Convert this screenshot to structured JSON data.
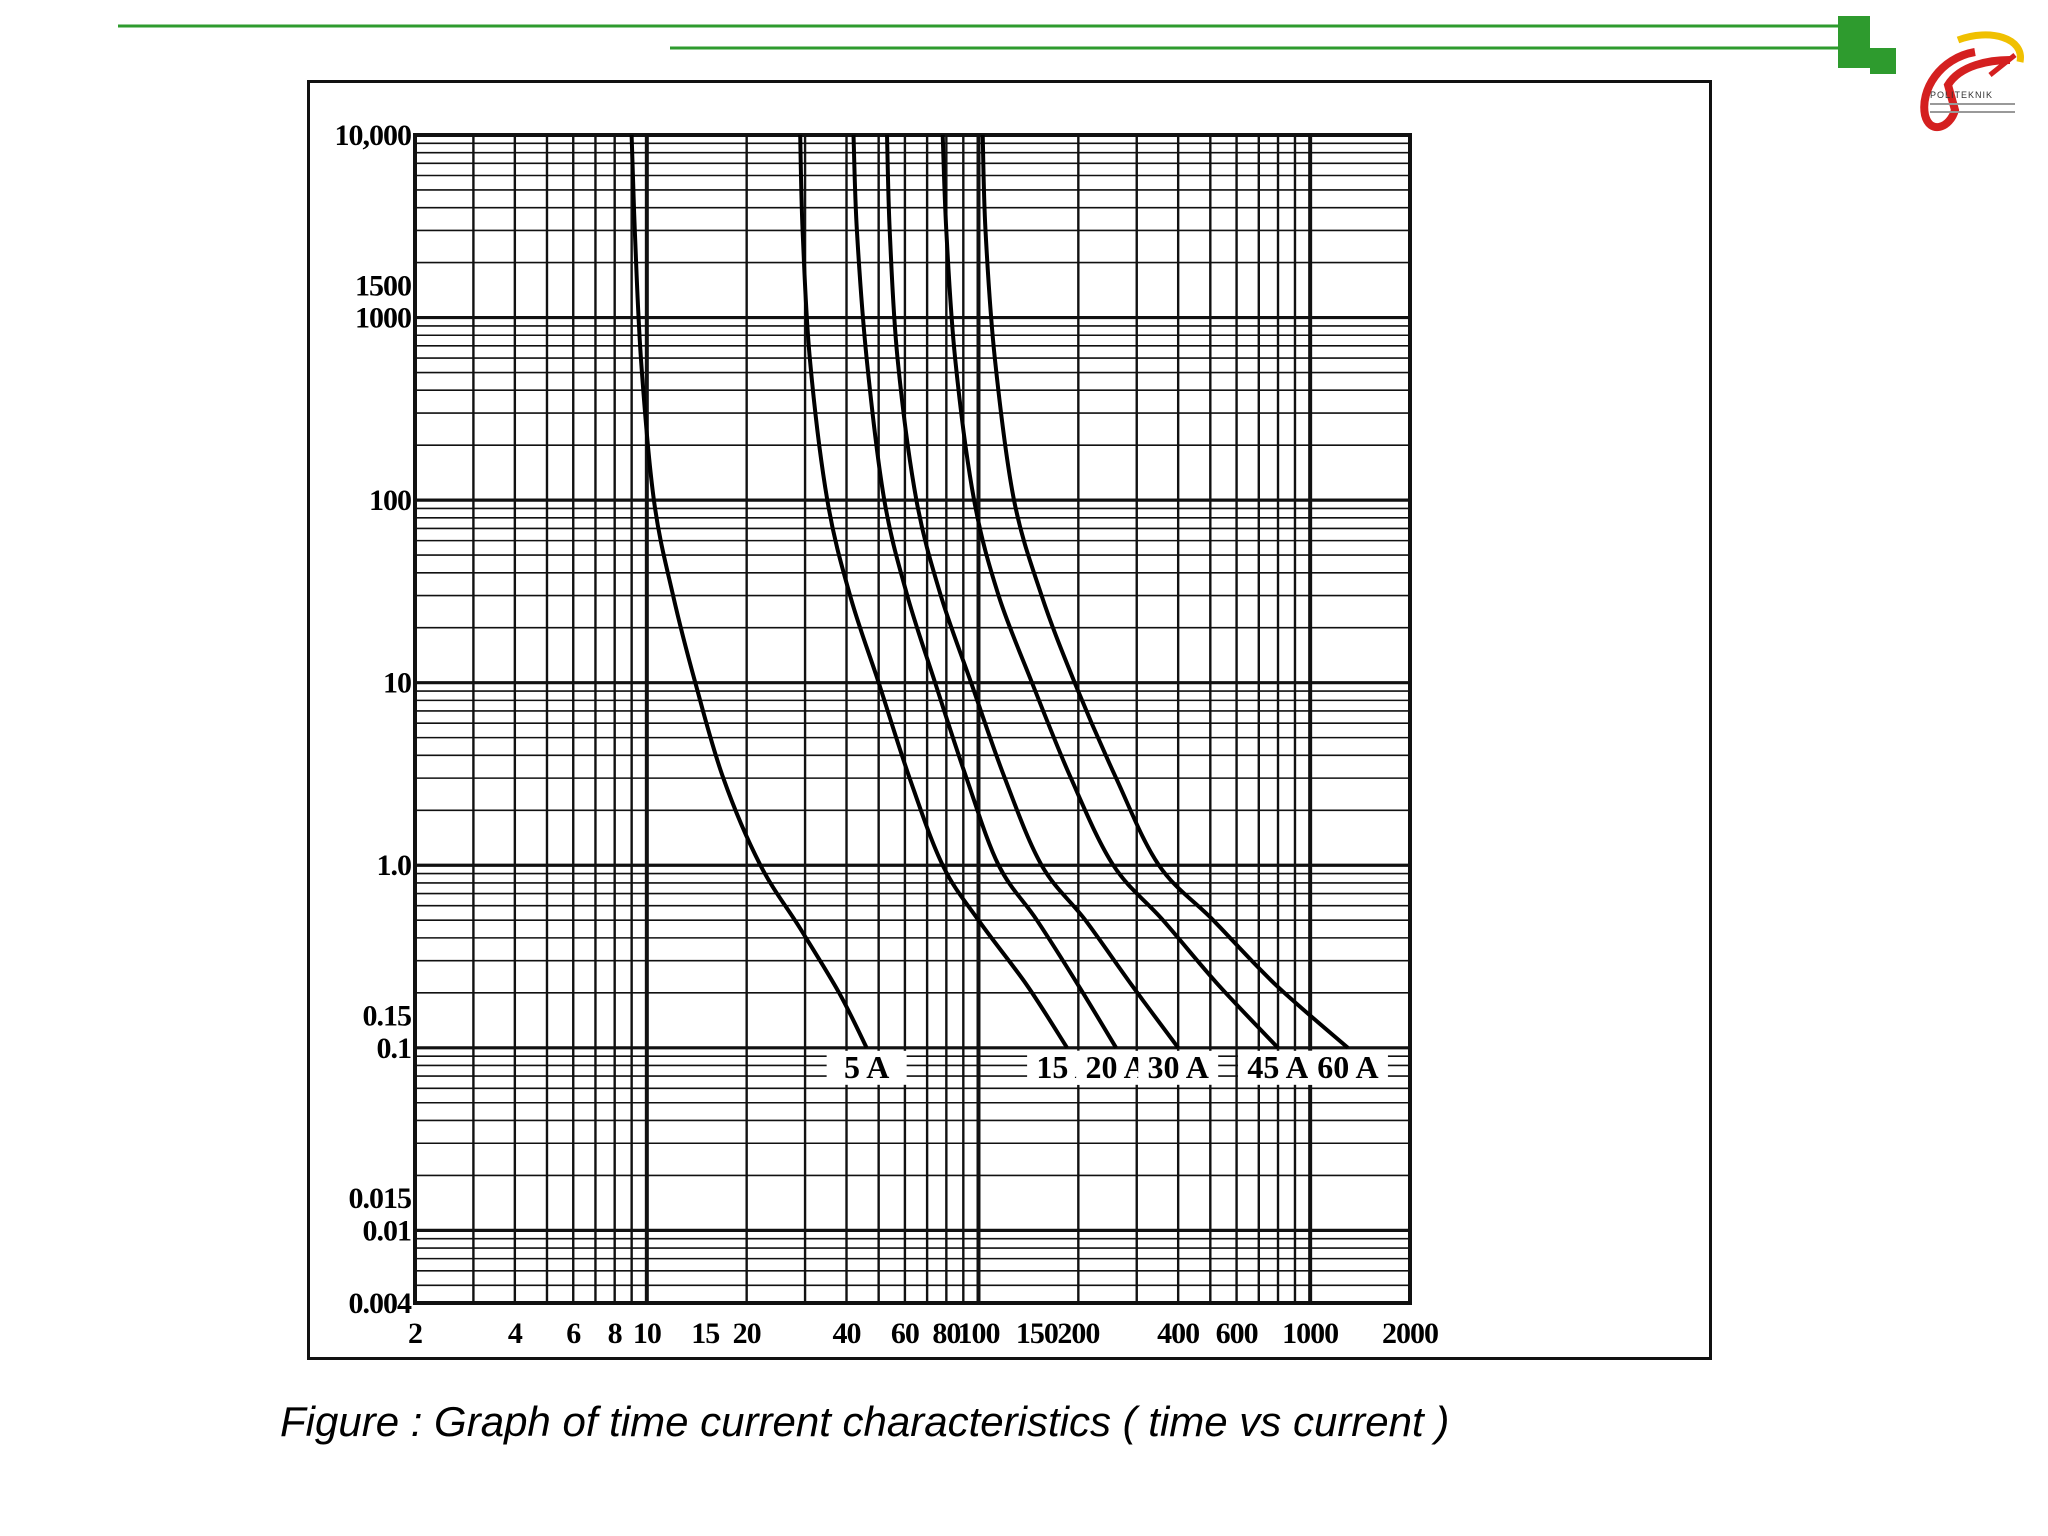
{
  "theme": {
    "accent_green": "#2e9b2e",
    "logo_red": "#d42020",
    "logo_yellow": "#f0c000",
    "grid_color": "#111111",
    "curve_color": "#000000"
  },
  "logo": {
    "name": "POLITEKNIK"
  },
  "caption": "Figure : Graph of time current characteristics ( time vs current )",
  "chart_data": {
    "type": "line",
    "x_scale": "log",
    "y_scale": "log",
    "xlim": [
      2,
      2000
    ],
    "ylim": [
      0.004,
      10000
    ],
    "grid": true,
    "legend": "none",
    "x_ticks": [
      {
        "value": 2,
        "label": "2"
      },
      {
        "value": 4,
        "label": "4"
      },
      {
        "value": 6,
        "label": "6"
      },
      {
        "value": 8,
        "label": "8"
      },
      {
        "value": 10,
        "label": "10"
      },
      {
        "value": 15,
        "label": "15"
      },
      {
        "value": 20,
        "label": "20"
      },
      {
        "value": 40,
        "label": "40"
      },
      {
        "value": 60,
        "label": "60"
      },
      {
        "value": 80,
        "label": "80"
      },
      {
        "value": 100,
        "label": "100"
      },
      {
        "value": 150,
        "label": "150"
      },
      {
        "value": 200,
        "label": "200"
      },
      {
        "value": 400,
        "label": "400"
      },
      {
        "value": 600,
        "label": "600"
      },
      {
        "value": 1000,
        "label": "1000"
      },
      {
        "value": 2000,
        "label": "2000"
      }
    ],
    "y_ticks": [
      {
        "value": 10000,
        "label": "10,000"
      },
      {
        "value": 1500,
        "label": "1500"
      },
      {
        "value": 1000,
        "label": "1000"
      },
      {
        "value": 100,
        "label": "100"
      },
      {
        "value": 10,
        "label": "10"
      },
      {
        "value": 1,
        "label": "1.0"
      },
      {
        "value": 0.15,
        "label": "0.15"
      },
      {
        "value": 0.1,
        "label": "0.1"
      },
      {
        "value": 0.015,
        "label": "0.015"
      },
      {
        "value": 0.01,
        "label": "0.01"
      },
      {
        "value": 0.004,
        "label": "0.004"
      }
    ],
    "series": [
      {
        "name": "5 A",
        "label_x": 46,
        "x": [
          9.0,
          9.2,
          9.6,
          10.5,
          12,
          14,
          17,
          22,
          29,
          38,
          46
        ],
        "y": [
          10000,
          3000,
          600,
          100,
          30,
          10,
          3,
          1.0,
          0.45,
          0.2,
          0.1
        ]
      },
      {
        "name": "15 A",
        "label_x": 185,
        "x": [
          29,
          29.5,
          31,
          35,
          41,
          50,
          62,
          78,
          100,
          140,
          185
        ],
        "y": [
          10000,
          3000,
          600,
          100,
          30,
          10,
          3,
          1.0,
          0.5,
          0.22,
          0.1
        ]
      },
      {
        "name": "20 A",
        "label_x": 260,
        "x": [
          42,
          43,
          46,
          52,
          61,
          74,
          92,
          115,
          150,
          200,
          260
        ],
        "y": [
          10000,
          3000,
          600,
          100,
          30,
          10,
          3,
          1.0,
          0.5,
          0.22,
          0.1
        ]
      },
      {
        "name": "30 A",
        "label_x": 400,
        "x": [
          53,
          54,
          57,
          65,
          77,
          95,
          120,
          155,
          210,
          290,
          400
        ],
        "y": [
          10000,
          3000,
          600,
          100,
          30,
          10,
          3,
          1.0,
          0.5,
          0.22,
          0.1
        ]
      },
      {
        "name": "45 A",
        "label_x": 800,
        "x": [
          78,
          80,
          85,
          97,
          115,
          145,
          190,
          255,
          360,
          530,
          800
        ],
        "y": [
          10000,
          3000,
          600,
          100,
          30,
          10,
          3,
          1.0,
          0.5,
          0.22,
          0.1
        ]
      },
      {
        "name": "60 A",
        "label_x": 1300,
        "x": [
          103,
          105,
          112,
          128,
          155,
          195,
          260,
          350,
          510,
          790,
          1300
        ],
        "y": [
          10000,
          3000,
          600,
          100,
          30,
          10,
          3,
          1.0,
          0.5,
          0.22,
          0.1
        ]
      }
    ]
  }
}
